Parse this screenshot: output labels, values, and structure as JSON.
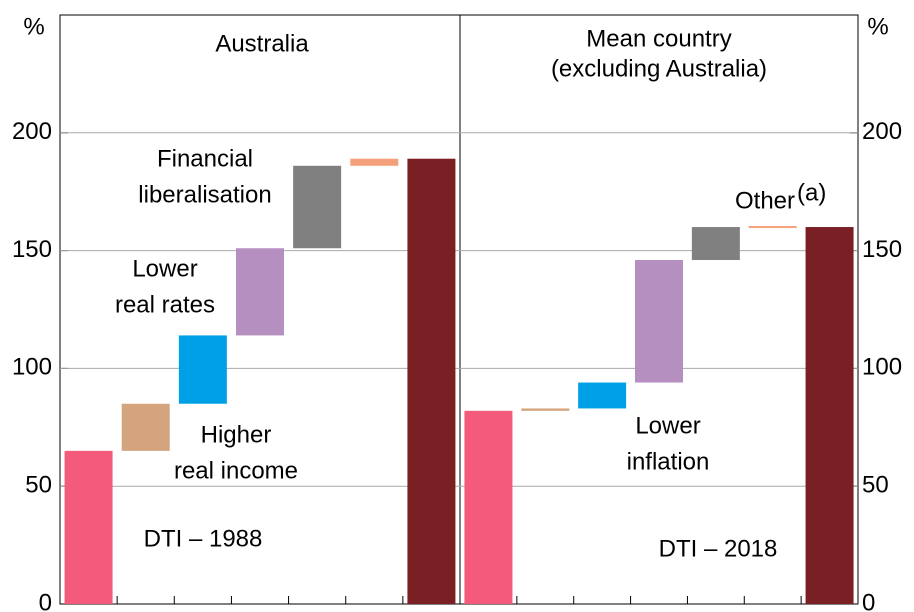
{
  "y_axis_label": "%",
  "chart_data": [
    {
      "type": "waterfall",
      "title": [
        "Australia"
      ],
      "values": [
        65,
        20,
        29,
        37,
        35,
        3,
        189
      ],
      "kinds": [
        "total",
        "step",
        "step",
        "step",
        "step",
        "step",
        "total"
      ],
      "colors": [
        "#f45a7c",
        "#d4a47e",
        "#00a0e6",
        "#b48fc0",
        "#808080",
        "#f4a07a",
        "#7a2025"
      ],
      "ylim": [
        0,
        250
      ],
      "yticks": [
        0,
        50,
        100,
        150,
        200
      ],
      "grid": true,
      "annotations": [
        {
          "text": [
            "Financial",
            "liberalisation"
          ],
          "color": "#808080"
        },
        {
          "text": [
            "Lower",
            "real rates"
          ],
          "color": "#b48fc0"
        },
        {
          "text": [
            "Higher",
            "real income"
          ],
          "color": "#c8a080"
        },
        {
          "text": [
            "DTI – 1988"
          ],
          "color": "#e05078"
        }
      ]
    },
    {
      "type": "waterfall",
      "title": [
        "Mean country",
        "(excluding Australia)"
      ],
      "values": [
        82,
        1,
        11,
        52,
        14,
        0,
        160
      ],
      "kinds": [
        "total",
        "step",
        "step",
        "step",
        "step",
        "step",
        "total"
      ],
      "colors": [
        "#f45a7c",
        "#d4a47e",
        "#00a0e6",
        "#b48fc0",
        "#808080",
        "#f4a07a",
        "#7a2025"
      ],
      "ylim": [
        0,
        250
      ],
      "yticks": [
        0,
        50,
        100,
        150,
        200
      ],
      "grid": true,
      "annotations": [
        {
          "text": [
            "Other"
          ],
          "note": "(a)",
          "color": "#f4a07a"
        },
        {
          "text": [
            "Lower",
            "inflation"
          ],
          "color": "#00a0e6"
        },
        {
          "text": [
            "DTI – 2018"
          ],
          "color": "#7a2025"
        }
      ]
    }
  ]
}
